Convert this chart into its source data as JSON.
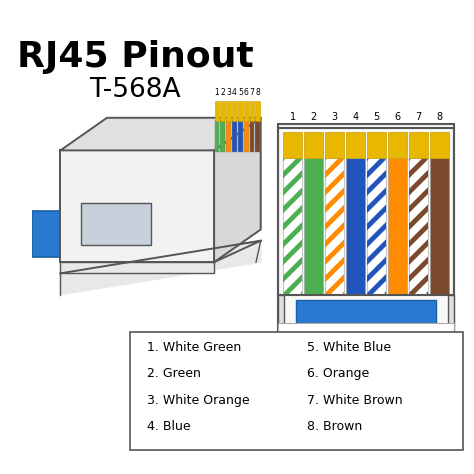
{
  "title_line1": "RJ45 Pinout",
  "title_line2": "T-568A",
  "bg_color": "#ffffff",
  "wire_defs": [
    {
      "base": "#ffffff",
      "stripe": "#4CAF50"
    },
    {
      "base": "#4CAF50",
      "stripe": null
    },
    {
      "base": "#ffffff",
      "stripe": "#FF8C00"
    },
    {
      "base": "#2255BB",
      "stripe": null
    },
    {
      "base": "#ffffff",
      "stripe": "#2255BB"
    },
    {
      "base": "#FF8C00",
      "stripe": null
    },
    {
      "base": "#ffffff",
      "stripe": "#7B4A2D"
    },
    {
      "base": "#7B4A2D",
      "stripe": null
    }
  ],
  "pin_labels": [
    "1",
    "2",
    "3",
    "4",
    "5",
    "6",
    "7",
    "8"
  ],
  "legend_left": [
    "1. White Green",
    "2. Green",
    "3. White Orange",
    "4. Blue"
  ],
  "legend_right": [
    "5. White Blue",
    "6. Orange",
    "7. White Brown",
    "8. Brown"
  ],
  "cable_blue": "#2979D0",
  "gold_color": "#E8B800",
  "connector_fill": "#f5f5f5",
  "connector_edge": "#555555",
  "legend_box_color": "#ffffff",
  "legend_border": "#555555"
}
